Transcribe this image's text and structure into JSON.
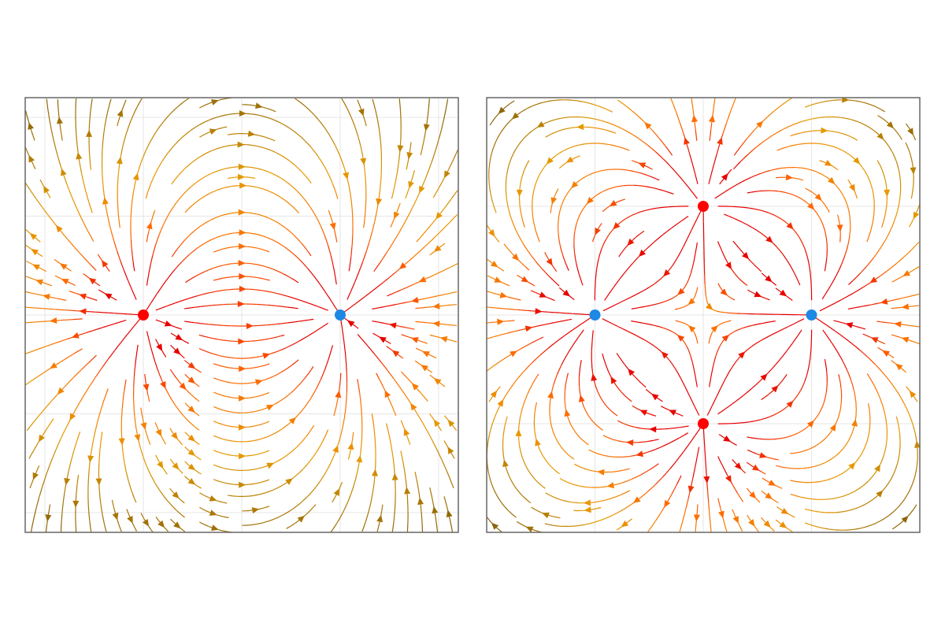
{
  "chart_data": [
    {
      "type": "streamplot",
      "xlim": [
        -2.2,
        2.2
      ],
      "ylim": [
        -2.2,
        2.2
      ],
      "xticks": [
        -2,
        -1,
        0,
        1,
        2
      ],
      "yticks": [
        -2,
        -1,
        0,
        1,
        2
      ],
      "grid": true,
      "charges": {
        "x": [
          -1,
          1
        ],
        "y": [
          0,
          0
        ],
        "q": [
          1,
          -1
        ]
      },
      "charge_colors": {
        "positive": "#ff0000",
        "negative": "#1e88e5"
      },
      "colormap": [
        "#8b6508",
        "#e69a00",
        "#ff6a00",
        "#e60000"
      ]
    },
    {
      "type": "streamplot",
      "xlim": [
        -2,
        2
      ],
      "ylim": [
        -2,
        2
      ],
      "xticks": [
        -2,
        -1,
        0,
        1,
        2
      ],
      "yticks": [
        -2,
        -1,
        0,
        1,
        2
      ],
      "grid": true,
      "charges": {
        "x": [
          0,
          0,
          -1,
          1
        ],
        "y": [
          1,
          -1,
          0,
          0
        ],
        "q": [
          1,
          1,
          -1,
          -1
        ]
      },
      "charge_colors": {
        "positive": "#ff0000",
        "negative": "#1e88e5"
      },
      "colormap": [
        "#8b6508",
        "#e69a00",
        "#ff6a00",
        "#e60000"
      ]
    }
  ]
}
